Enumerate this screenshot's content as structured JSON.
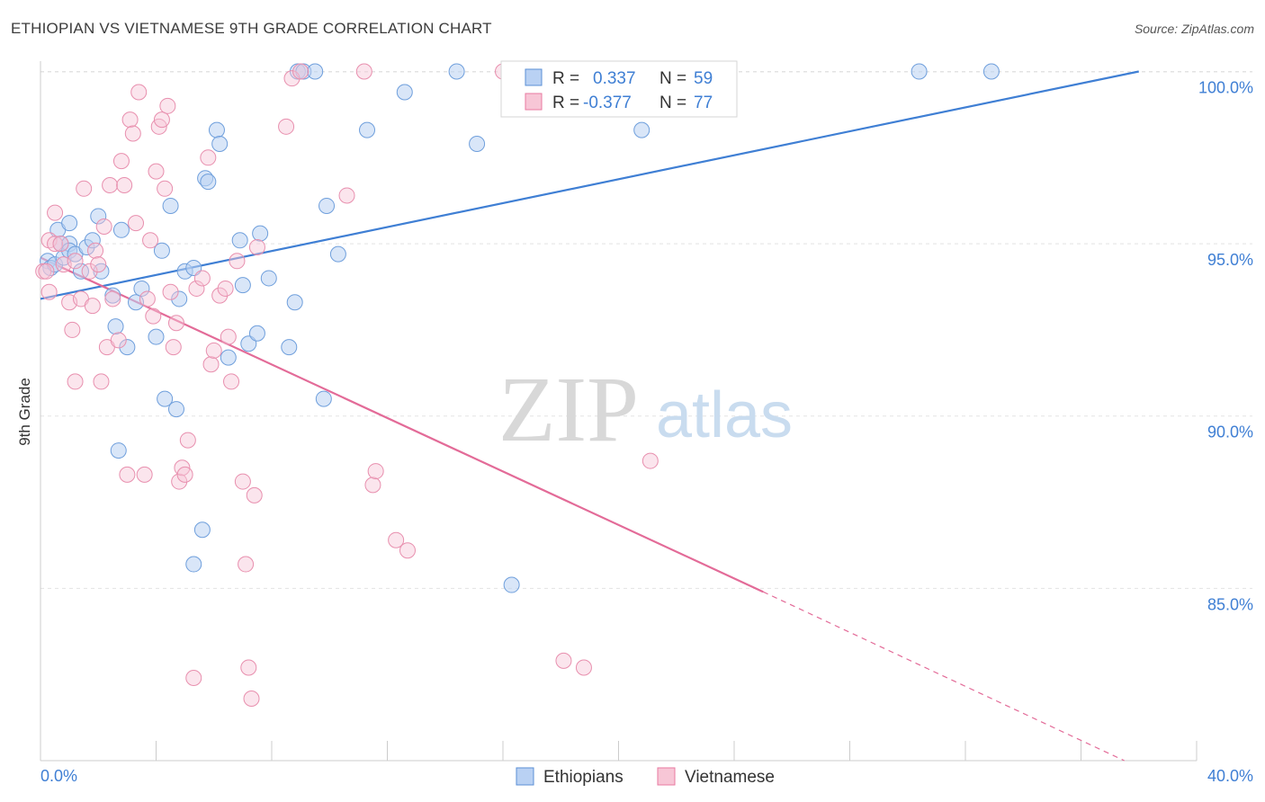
{
  "header": {
    "title": "ETHIOPIAN VS VIETNAMESE 9TH GRADE CORRELATION CHART",
    "source": "Source: ZipAtlas.com"
  },
  "watermark": {
    "zip": "ZIP",
    "atlas": "atlas"
  },
  "legend_box": {
    "rows": [
      {
        "r_label": "R =",
        "r_value": "0.337",
        "n_label": "N =",
        "n_value": "59",
        "color": "#5b8fd6",
        "fill": "#b9d1f3"
      },
      {
        "r_label": "R =",
        "r_value": "-0.377",
        "n_label": "N =",
        "n_value": "77",
        "color": "#e87aa0",
        "fill": "#f7c6d6"
      }
    ]
  },
  "bottom_legend": [
    {
      "label": "Ethiopians",
      "fill": "#b9d1f3",
      "stroke": "#5b8fd6"
    },
    {
      "label": "Vietnamese",
      "fill": "#f7c6d6",
      "stroke": "#e87aa0"
    }
  ],
  "chart_data": {
    "type": "scatter",
    "title": "ETHIOPIAN VS VIETNAMESE 9TH GRADE CORRELATION CHART",
    "xlabel": "",
    "ylabel": "9th Grade",
    "xlim": [
      0,
      40
    ],
    "ylim": [
      80.0,
      100.3
    ],
    "x_tick_labels": [
      "0.0%",
      "40.0%"
    ],
    "y_ticks": [
      85,
      90,
      95,
      100
    ],
    "y_tick_labels": [
      "85.0%",
      "90.0%",
      "95.0%",
      "100.0%"
    ],
    "grid": true,
    "legend_position": "top-center",
    "colors": {
      "blue": "#3f7fd4",
      "pink": "#e36b98"
    },
    "series": [
      {
        "name": "Ethiopians",
        "r": 0.337,
        "n": 59,
        "trend": {
          "x0": 0,
          "y0": 93.4,
          "x1": 38.0,
          "y1": 100.0,
          "dashed_to": null
        },
        "points": [
          [
            0.25,
            94.5
          ],
          [
            0.35,
            94.3
          ],
          [
            0.5,
            94.4
          ],
          [
            0.6,
            95.4
          ],
          [
            0.7,
            95.0
          ],
          [
            0.8,
            94.6
          ],
          [
            1.0,
            95.0
          ],
          [
            1.0,
            94.8
          ],
          [
            1.0,
            95.6
          ],
          [
            1.2,
            94.7
          ],
          [
            1.4,
            94.2
          ],
          [
            1.6,
            94.9
          ],
          [
            1.8,
            95.1
          ],
          [
            2.0,
            95.8
          ],
          [
            2.1,
            94.2
          ],
          [
            2.5,
            93.5
          ],
          [
            2.6,
            92.6
          ],
          [
            2.8,
            95.4
          ],
          [
            3.0,
            92.0
          ],
          [
            3.3,
            93.3
          ],
          [
            3.5,
            93.7
          ],
          [
            4.0,
            92.3
          ],
          [
            4.2,
            94.8
          ],
          [
            4.3,
            90.5
          ],
          [
            4.5,
            96.1
          ],
          [
            4.7,
            90.2
          ],
          [
            4.8,
            93.4
          ],
          [
            5.0,
            94.2
          ],
          [
            5.3,
            94.3
          ],
          [
            5.7,
            96.9
          ],
          [
            5.8,
            96.8
          ],
          [
            6.1,
            98.3
          ],
          [
            6.2,
            97.9
          ],
          [
            6.5,
            91.7
          ],
          [
            6.9,
            95.1
          ],
          [
            7.0,
            93.8
          ],
          [
            7.2,
            92.1
          ],
          [
            7.5,
            92.4
          ],
          [
            7.6,
            95.3
          ],
          [
            7.9,
            94.0
          ],
          [
            8.6,
            92.0
          ],
          [
            8.8,
            93.3
          ],
          [
            8.9,
            100.0
          ],
          [
            9.1,
            100.0
          ],
          [
            9.5,
            100.0
          ],
          [
            9.8,
            90.5
          ],
          [
            9.9,
            96.1
          ],
          [
            10.3,
            94.7
          ],
          [
            11.3,
            98.3
          ],
          [
            12.6,
            99.4
          ],
          [
            14.4,
            100.0
          ],
          [
            15.1,
            97.9
          ],
          [
            16.3,
            85.1
          ],
          [
            20.8,
            98.3
          ],
          [
            30.4,
            100.0
          ],
          [
            32.9,
            100.0
          ],
          [
            2.7,
            89.0
          ],
          [
            5.6,
            86.7
          ],
          [
            5.3,
            85.7
          ]
        ]
      },
      {
        "name": "Vietnamese",
        "r": -0.377,
        "n": 77,
        "trend": {
          "x0": 0,
          "y0": 94.6,
          "x1": 25.0,
          "y1": 84.9,
          "dashed_to": [
            37.5,
            80.0
          ]
        },
        "points": [
          [
            0.1,
            94.2
          ],
          [
            0.2,
            94.2
          ],
          [
            0.3,
            93.6
          ],
          [
            0.3,
            95.1
          ],
          [
            0.5,
            95.9
          ],
          [
            0.5,
            95.0
          ],
          [
            0.7,
            95.0
          ],
          [
            0.8,
            94.4
          ],
          [
            1.0,
            93.3
          ],
          [
            1.1,
            92.5
          ],
          [
            1.2,
            94.5
          ],
          [
            1.2,
            91.0
          ],
          [
            1.4,
            93.4
          ],
          [
            1.5,
            96.6
          ],
          [
            1.7,
            94.2
          ],
          [
            1.8,
            93.2
          ],
          [
            1.9,
            94.8
          ],
          [
            2.0,
            94.4
          ],
          [
            2.1,
            91.0
          ],
          [
            2.2,
            95.5
          ],
          [
            2.3,
            92.0
          ],
          [
            2.4,
            96.7
          ],
          [
            2.5,
            93.4
          ],
          [
            2.7,
            92.2
          ],
          [
            2.8,
            97.4
          ],
          [
            2.9,
            96.7
          ],
          [
            3.0,
            88.3
          ],
          [
            3.1,
            98.6
          ],
          [
            3.2,
            98.2
          ],
          [
            3.3,
            95.6
          ],
          [
            3.4,
            99.4
          ],
          [
            3.6,
            88.3
          ],
          [
            3.7,
            93.4
          ],
          [
            3.8,
            95.1
          ],
          [
            3.9,
            92.9
          ],
          [
            4.0,
            97.1
          ],
          [
            4.1,
            98.4
          ],
          [
            4.2,
            98.6
          ],
          [
            4.3,
            96.6
          ],
          [
            4.4,
            99.0
          ],
          [
            4.5,
            93.6
          ],
          [
            4.6,
            92.0
          ],
          [
            4.7,
            92.7
          ],
          [
            4.8,
            88.1
          ],
          [
            4.9,
            88.5
          ],
          [
            5.0,
            88.3
          ],
          [
            5.1,
            89.3
          ],
          [
            5.3,
            82.4
          ],
          [
            5.4,
            93.7
          ],
          [
            5.6,
            94.0
          ],
          [
            5.8,
            97.5
          ],
          [
            5.9,
            91.5
          ],
          [
            6.0,
            91.9
          ],
          [
            6.2,
            93.5
          ],
          [
            6.4,
            93.7
          ],
          [
            6.5,
            92.3
          ],
          [
            6.6,
            91.0
          ],
          [
            6.8,
            94.5
          ],
          [
            7.0,
            88.1
          ],
          [
            7.1,
            85.7
          ],
          [
            7.2,
            82.7
          ],
          [
            7.3,
            81.8
          ],
          [
            7.4,
            87.7
          ],
          [
            7.5,
            94.9
          ],
          [
            8.5,
            98.4
          ],
          [
            8.7,
            99.8
          ],
          [
            9.0,
            100.0
          ],
          [
            10.6,
            96.4
          ],
          [
            11.2,
            100.0
          ],
          [
            11.5,
            88.0
          ],
          [
            11.6,
            88.4
          ],
          [
            12.3,
            86.4
          ],
          [
            12.7,
            86.1
          ],
          [
            16.0,
            100.0
          ],
          [
            18.1,
            82.9
          ],
          [
            18.8,
            82.7
          ],
          [
            21.1,
            88.7
          ]
        ]
      }
    ]
  }
}
